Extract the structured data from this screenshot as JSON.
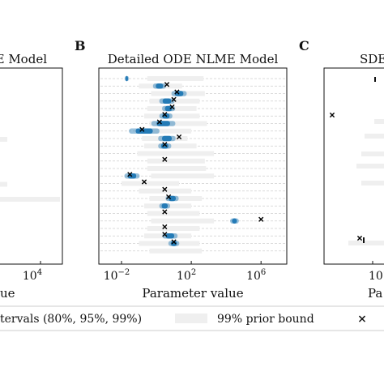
{
  "figure": {
    "legend": {
      "intervals_label": "tervals (80%, 95%, 99%)",
      "prior_label": "99% prior bound",
      "true_marker": "×"
    },
    "colors": {
      "posterior": "#1f77b4",
      "prior_bar": "#efefef",
      "grid": "#cfcfcf",
      "true_value": "#000000"
    }
  },
  "chart_data": [
    {
      "type": "scatter",
      "panel_letter": "",
      "title": "E Model",
      "xlabel": "ue",
      "xscale": "log",
      "xtick_labels": [
        "10^4"
      ],
      "xtick_values": [
        10000
      ],
      "rows": 16,
      "prior_bars": [
        {
          "row": 4,
          "lo": 1000,
          "hi": 20000
        },
        {
          "row": 10,
          "lo": 1000,
          "hi": 20000
        },
        {
          "row": 12,
          "lo": 1,
          "hi": 1000000
        }
      ],
      "posterior": [],
      "true_values": []
    },
    {
      "type": "scatter",
      "panel_letter": "B",
      "title": "Detailed ODE NLME Model",
      "xlabel": "Parameter value",
      "xscale": "log",
      "xlim": [
        0.0005,
        30000000
      ],
      "xtick_labels": [
        "10^{-2}",
        "10^2",
        "10^6"
      ],
      "xtick_values": [
        0.01,
        100,
        1000000
      ],
      "grid": true,
      "rows": 24,
      "prior_bars": [
        {
          "row": 0,
          "lo": 0.3,
          "hi": 500
        },
        {
          "row": 1,
          "lo": 0.1,
          "hi": 30
        },
        {
          "row": 2,
          "lo": 0.5,
          "hi": 600
        },
        {
          "row": 3,
          "lo": 0.4,
          "hi": 300
        },
        {
          "row": 4,
          "lo": 0.3,
          "hi": 200
        },
        {
          "row": 5,
          "lo": 0.2,
          "hi": 300
        },
        {
          "row": 6,
          "lo": 0.4,
          "hi": 800
        },
        {
          "row": 7,
          "lo": 0.3,
          "hi": 100
        },
        {
          "row": 8,
          "lo": 0.15,
          "hi": 60
        },
        {
          "row": 9,
          "lo": 0.2,
          "hi": 200
        },
        {
          "row": 10,
          "lo": 0.08,
          "hi": 2000
        },
        {
          "row": 11,
          "lo": 0.3,
          "hi": 600
        },
        {
          "row": 12,
          "lo": 0.3,
          "hi": 700
        },
        {
          "row": 13,
          "lo": 0.5,
          "hi": 2000
        },
        {
          "row": 14,
          "lo": 0.01,
          "hi": 20
        },
        {
          "row": 15,
          "lo": 0.1,
          "hi": 100
        },
        {
          "row": 16,
          "lo": 0.4,
          "hi": 400
        },
        {
          "row": 17,
          "lo": 0.2,
          "hi": 100
        },
        {
          "row": 18,
          "lo": 0.3,
          "hi": 300
        },
        {
          "row": 19,
          "lo": 0.5,
          "hi": 2000
        },
        {
          "row": 20,
          "lo": 0.3,
          "hi": 300
        },
        {
          "row": 21,
          "lo": 0.2,
          "hi": 100
        },
        {
          "row": 22,
          "lo": 0.1,
          "hi": 300
        },
        {
          "row": 23,
          "lo": 0.4,
          "hi": 400
        }
      ],
      "posterior": [
        {
          "row": 0,
          "center": 0.02,
          "spread": 0.1
        },
        {
          "row": 1,
          "center": 1.5,
          "spread": 0.3
        },
        {
          "row": 2,
          "center": 20,
          "spread": 0.35
        },
        {
          "row": 3,
          "center": 4,
          "spread": 0.35
        },
        {
          "row": 4,
          "center": 5,
          "spread": 0.3
        },
        {
          "row": 5,
          "center": 3.5,
          "spread": 0.3
        },
        {
          "row": 6,
          "center": 2.5,
          "spread": 0.55
        },
        {
          "row": 7,
          "center": 0.2,
          "spread": 0.7
        },
        {
          "row": 8,
          "center": 4,
          "spread": 0.4
        },
        {
          "row": 9,
          "center": 3,
          "spread": 0.3
        },
        {
          "row": 10,
          "center": null,
          "spread": 0
        },
        {
          "row": 11,
          "center": null,
          "spread": 0
        },
        {
          "row": 12,
          "center": null,
          "spread": 0
        },
        {
          "row": 13,
          "center": 0.04,
          "spread": 0.35
        },
        {
          "row": 14,
          "center": null,
          "spread": 0
        },
        {
          "row": 15,
          "center": null,
          "spread": 0
        },
        {
          "row": 16,
          "center": 8,
          "spread": 0.3
        },
        {
          "row": 17,
          "center": 3,
          "spread": 0.25
        },
        {
          "row": 18,
          "center": null,
          "spread": 0
        },
        {
          "row": 19,
          "center": 30000,
          "spread": 0.2
        },
        {
          "row": 20,
          "center": null,
          "spread": 0
        },
        {
          "row": 21,
          "center": 6,
          "spread": 0.35
        },
        {
          "row": 22,
          "center": 10,
          "spread": 0.25
        },
        {
          "row": 23,
          "center": null,
          "spread": 0
        }
      ],
      "true_values": [
        {
          "row": 1,
          "value": 4
        },
        {
          "row": 2,
          "value": 15
        },
        {
          "row": 3,
          "value": 10
        },
        {
          "row": 4,
          "value": 8
        },
        {
          "row": 5,
          "value": 3
        },
        {
          "row": 6,
          "value": 1.5
        },
        {
          "row": 7,
          "value": 0.15
        },
        {
          "row": 8,
          "value": 20
        },
        {
          "row": 9,
          "value": 3
        },
        {
          "row": 11,
          "value": 3
        },
        {
          "row": 13,
          "value": 0.03
        },
        {
          "row": 14,
          "value": 0.2
        },
        {
          "row": 15,
          "value": 3
        },
        {
          "row": 16,
          "value": 5
        },
        {
          "row": 18,
          "value": 3
        },
        {
          "row": 19,
          "value": 1000000
        },
        {
          "row": 20,
          "value": 3
        },
        {
          "row": 21,
          "value": 3
        },
        {
          "row": 22,
          "value": 10
        }
      ]
    },
    {
      "type": "scatter",
      "panel_letter": "C",
      "title": "SDE",
      "xlabel": "Pa",
      "xscale": "log",
      "xtick_labels": [
        "10^{-"
      ],
      "rows": 16,
      "prior_bars": [
        {
          "row": 2,
          "lo": 0,
          "hi": 1
        },
        {
          "row": 3,
          "lo": 0,
          "hi": 1
        },
        {
          "row": 5,
          "lo": 0,
          "hi": 1
        },
        {
          "row": 8,
          "lo": 0,
          "hi": 1
        }
      ],
      "posterior": [
        {
          "row": 0,
          "center": 0.7,
          "spread": 0.02
        },
        {
          "row": 14,
          "center": 0.45,
          "spread": 0.03
        }
      ],
      "true_values": [
        {
          "row": 4,
          "value": 0.1
        },
        {
          "row": 14,
          "value": 0.4
        }
      ]
    }
  ]
}
